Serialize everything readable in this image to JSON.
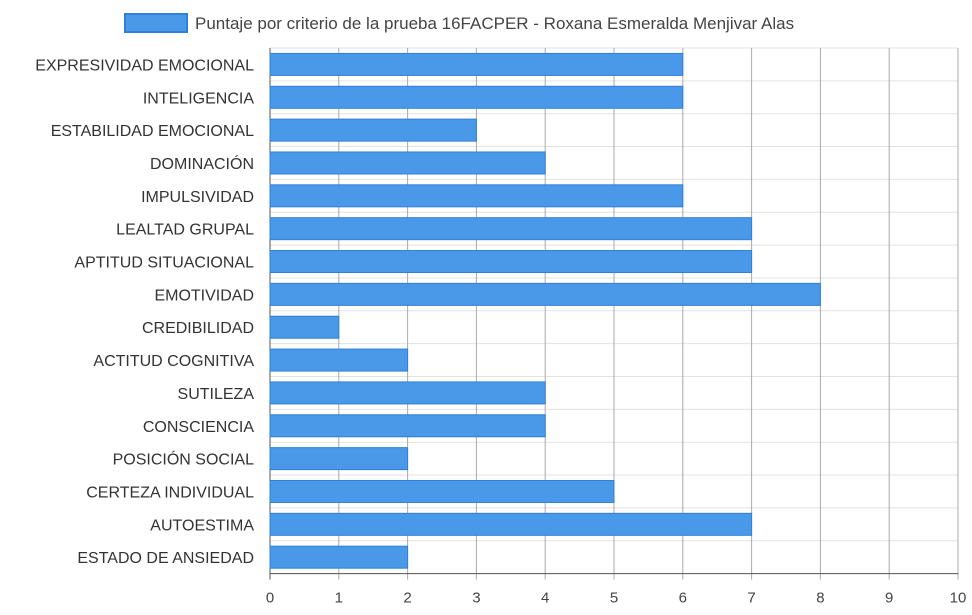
{
  "chart_data": {
    "type": "bar",
    "orientation": "horizontal",
    "categories": [
      "EXPRESIVIDAD EMOCIONAL",
      "INTELIGENCIA",
      "ESTABILIDAD EMOCIONAL",
      "DOMINACIÓN",
      "IMPULSIVIDAD",
      "LEALTAD GRUPAL",
      "APTITUD SITUACIONAL",
      "EMOTIVIDAD",
      "CREDIBILIDAD",
      "ACTITUD COGNITIVA",
      "SUTILEZA",
      "CONSCIENCIA",
      "POSICIÓN SOCIAL",
      "CERTEZA INDIVIDUAL",
      "AUTOESTIMA",
      "ESTADO DE ANSIEDAD"
    ],
    "series": [
      {
        "name": "Puntaje por criterio de la prueba 16FACPER - Roxana Esmeralda Menjivar Alas",
        "values": [
          6,
          6,
          3,
          4,
          6,
          7,
          7,
          8,
          1,
          2,
          4,
          4,
          2,
          5,
          7,
          2
        ]
      }
    ],
    "xlim": [
      0,
      10
    ],
    "xticks": [
      "0",
      "1",
      "2",
      "3",
      "4",
      "5",
      "6",
      "7",
      "8",
      "9",
      "10"
    ],
    "grid": true,
    "legend_position": "top",
    "colors": {
      "bar_fill": "#4a98e8",
      "bar_stroke": "#2f80d6",
      "grid": "#a9a9a9",
      "grid_minor": "#e3e3e3"
    }
  }
}
